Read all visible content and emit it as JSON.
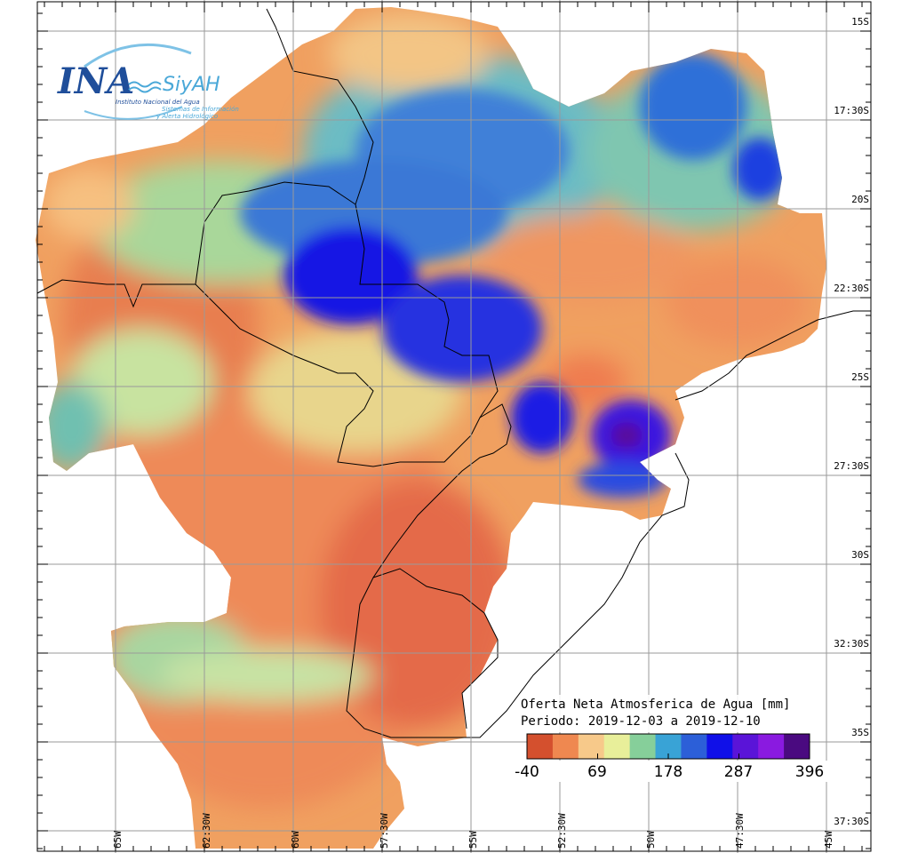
{
  "logo": {
    "ina": "INA",
    "siyah": "SiyAH",
    "ina_subtitle": "Instituto Nacional del Agua",
    "siyah_subtitle_1": "Sistemas de Información",
    "siyah_subtitle_2": "y Alerta Hidrológico"
  },
  "legend": {
    "title_line1": "Oferta Neta Atmosferica de Agua [mm]",
    "title_line2": "Periodo: 2019-12-03 a 2019-12-10",
    "ticks": [
      "-40",
      "69",
      "178",
      "287",
      "396"
    ],
    "colors": [
      "#d4502e",
      "#ef8850",
      "#f7c98a",
      "#e8ef9a",
      "#86cf9a",
      "#39a3d6",
      "#2c5fd8",
      "#1010e8",
      "#5a14d8",
      "#8a1ae0",
      "#4a0a80"
    ]
  },
  "grid": {
    "lat_labels": [
      "15S",
      "17:30S",
      "20S",
      "22:30S",
      "25S",
      "27:30S",
      "30S",
      "32:30S",
      "35S",
      "37:30S"
    ],
    "lon_labels": [
      "65W",
      "62:30W",
      "60W",
      "57:30W",
      "55W",
      "52:30W",
      "50W",
      "47:30W",
      "45W"
    ]
  }
}
